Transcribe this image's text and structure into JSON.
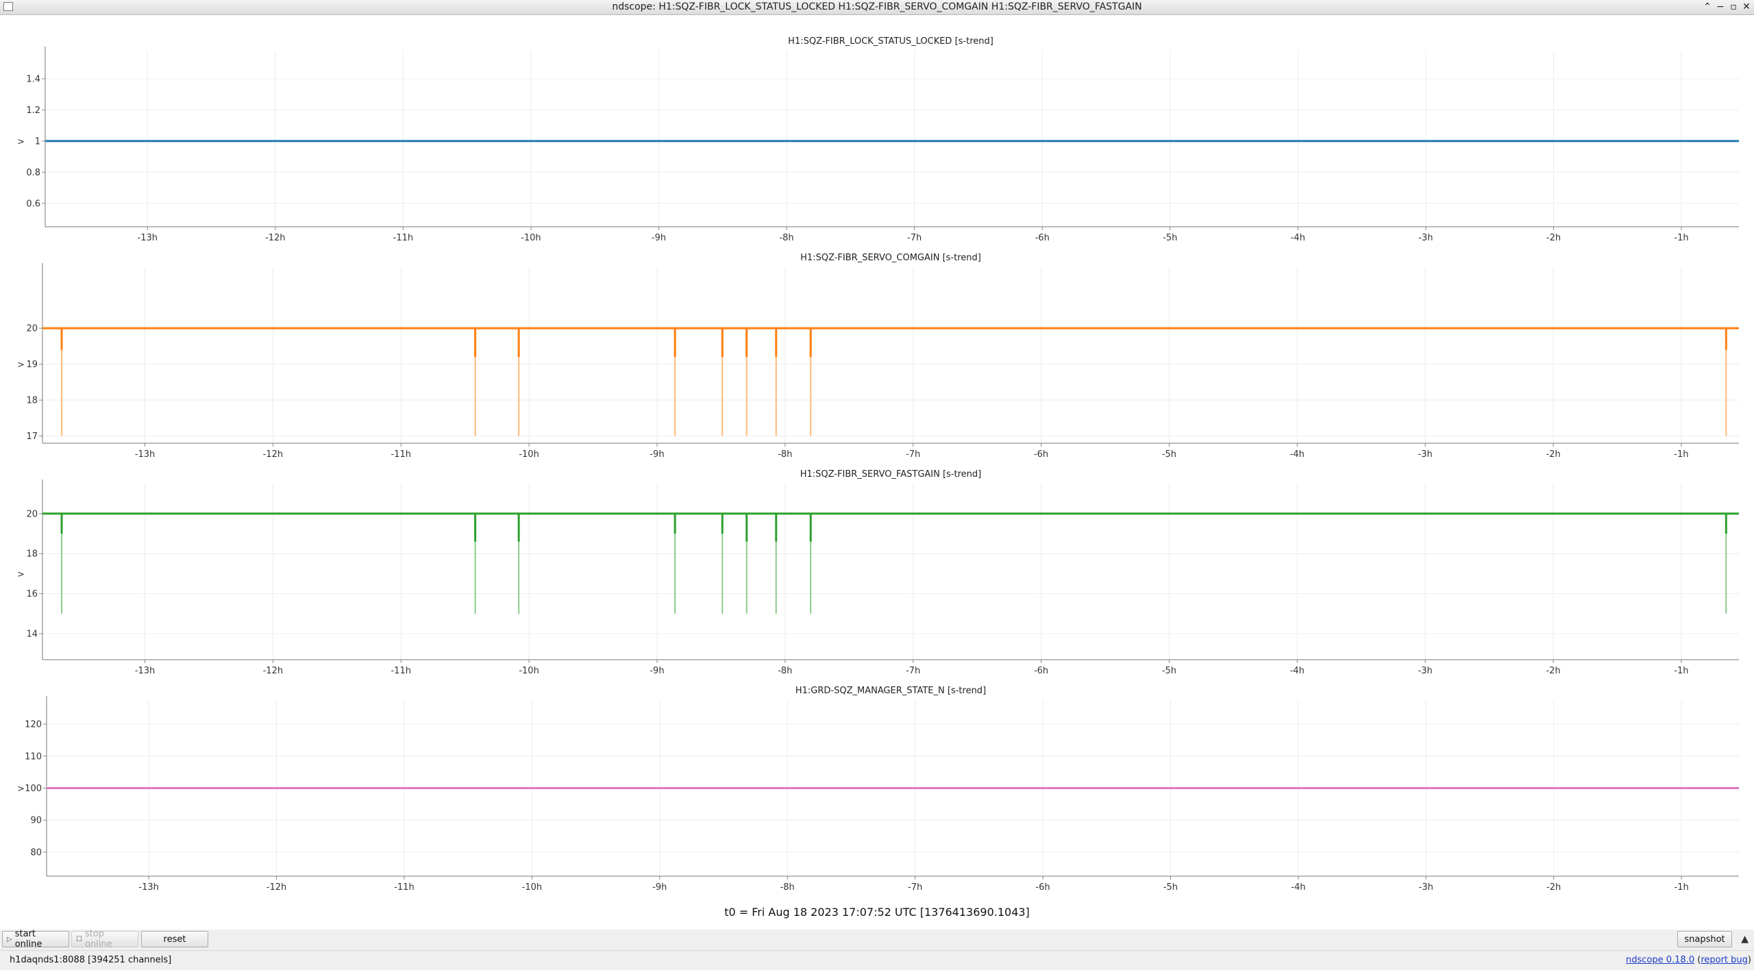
{
  "window": {
    "title": "ndscope: H1:SQZ-FIBR_LOCK_STATUS_LOCKED H1:SQZ-FIBR_SERVO_COMGAIN H1:SQZ-FIBR_SERVO_FASTGAIN",
    "buttons": {
      "minimize_glyph": "−",
      "maximize_glyph": "▫",
      "close_glyph": "✕",
      "shade_glyph": "⌃"
    }
  },
  "icons": [
    "app-icon",
    "play-icon",
    "checkbox-icon",
    "chevron-up-icon"
  ],
  "x_ticks": [
    "-13h",
    "-12h",
    "-11h",
    "-10h",
    "-9h",
    "-8h",
    "-7h",
    "-6h",
    "-5h",
    "-4h",
    "-3h",
    "-2h",
    "-1h"
  ],
  "chart_data": [
    {
      "type": "line",
      "title": "H1:SQZ-FIBR_LOCK_STATUS_LOCKED [s-trend]",
      "color": "#1f77b4",
      "xlim": [
        -13.8,
        -0.55
      ],
      "ylim": [
        0.45,
        1.58
      ],
      "yticks": [
        "0.6",
        "0.8",
        "1",
        "1.2",
        "1.4"
      ],
      "y_ticks_values": [
        0.6,
        0.8,
        1,
        1.2,
        1.4
      ],
      "cursor_value": 1,
      "baseline": 1,
      "dips": []
    },
    {
      "type": "line",
      "title": "H1:SQZ-FIBR_SERVO_COMGAIN [s-trend]",
      "color": "#ff7f0e",
      "xlim": [
        -13.8,
        -0.55
      ],
      "ylim": [
        16.8,
        21.7
      ],
      "yticks": [
        "17",
        "18",
        "19",
        "20"
      ],
      "y_ticks_values": [
        17,
        18,
        19,
        20
      ],
      "cursor_value": 19,
      "baseline": 20,
      "dips": [
        {
          "x": -13.65,
          "mean": 19.4,
          "min": 17
        },
        {
          "x": -10.42,
          "mean": 19.2,
          "min": 17
        },
        {
          "x": -10.08,
          "mean": 19.2,
          "min": 17
        },
        {
          "x": -8.86,
          "mean": 19.2,
          "min": 17
        },
        {
          "x": -8.49,
          "mean": 19.2,
          "min": 17
        },
        {
          "x": -8.3,
          "mean": 19.2,
          "min": 17
        },
        {
          "x": -8.07,
          "mean": 19.2,
          "min": 17
        },
        {
          "x": -7.8,
          "mean": 19.2,
          "min": 17
        },
        {
          "x": -0.65,
          "mean": 19.4,
          "min": 17
        }
      ]
    },
    {
      "type": "line",
      "title": "H1:SQZ-FIBR_SERVO_FASTGAIN [s-trend]",
      "color": "#2ca02c",
      "xlim": [
        -13.8,
        -0.55
      ],
      "ylim": [
        12.7,
        21.5
      ],
      "yticks": [
        "14",
        "16",
        "18",
        "20"
      ],
      "y_ticks_values": [
        14,
        16,
        18,
        20
      ],
      "cursor_value": 17,
      "baseline": 20,
      "dips": [
        {
          "x": -13.65,
          "mean": 19,
          "min": 15
        },
        {
          "x": -10.42,
          "mean": 18.6,
          "min": 15
        },
        {
          "x": -10.08,
          "mean": 18.6,
          "min": 15
        },
        {
          "x": -8.86,
          "mean": 19,
          "min": 15
        },
        {
          "x": -8.49,
          "mean": 19,
          "min": 15
        },
        {
          "x": -8.3,
          "mean": 18.6,
          "min": 15
        },
        {
          "x": -8.07,
          "mean": 18.6,
          "min": 15
        },
        {
          "x": -7.8,
          "mean": 18.6,
          "min": 15
        },
        {
          "x": -0.65,
          "mean": 19,
          "min": 15
        }
      ]
    },
    {
      "type": "line",
      "title": "H1:GRD-SQZ_MANAGER_STATE_N [s-trend]",
      "color": "#e377c2",
      "xlim": [
        -13.8,
        -0.55
      ],
      "ylim": [
        72.5,
        127.5
      ],
      "yticks": [
        "80",
        "90",
        "100",
        "110",
        "120"
      ],
      "y_ticks_values": [
        80,
        90,
        100,
        110,
        120
      ],
      "cursor_value": 100,
      "baseline": 100,
      "dips": []
    }
  ],
  "t0_text": "t0 = Fri Aug 18 2023 17:07:52 UTC [1376413690.1043]",
  "controls": {
    "start_online": "start online",
    "stop_online": "stop online",
    "reset": "reset",
    "snapshot": "snapshot"
  },
  "status": {
    "server": "h1daqnds1:8088  [394251 channels]",
    "version": "ndscope 0.18.0",
    "report_bug": "report bug"
  }
}
